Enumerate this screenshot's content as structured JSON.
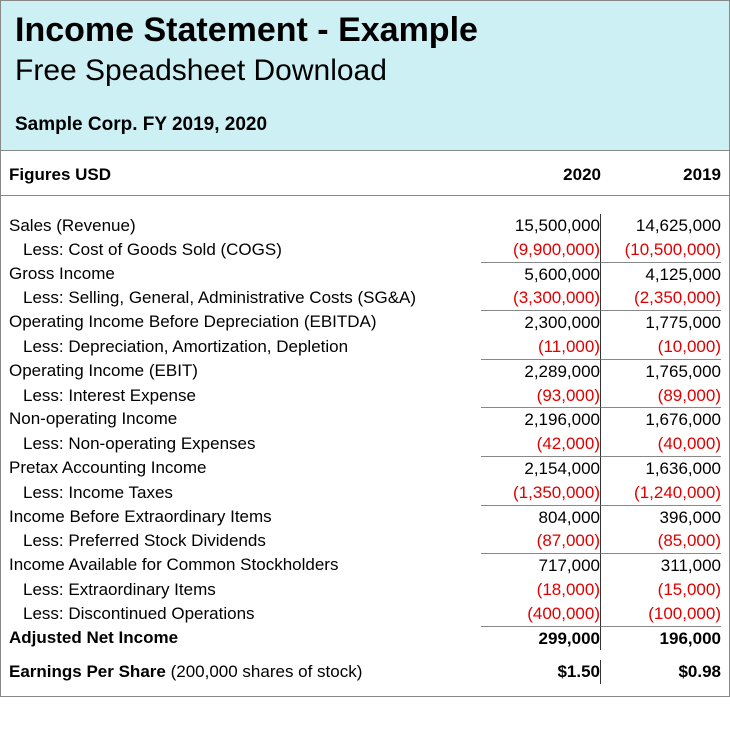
{
  "header": {
    "title": "Income Statement - Example",
    "subtitle": "Free Speadsheet Download",
    "company": "Sample Corp.  FY 2019, 2020",
    "background_color": "#cdf0f4"
  },
  "columns": {
    "figures_label": "Figures USD",
    "year1": "2020",
    "year2": "2019"
  },
  "rows": [
    {
      "label": "Sales (Revenue)",
      "y1": "15,500,000",
      "y2": "14,625,000",
      "indent": false,
      "neg": false,
      "div": false,
      "bold": false
    },
    {
      "label": "Less: Cost of Goods Sold (COGS)",
      "y1": "(9,900,000)",
      "y2": "(10,500,000)",
      "indent": true,
      "neg": true,
      "div": false,
      "bold": false
    },
    {
      "label": "Gross Income",
      "y1": "5,600,000",
      "y2": "4,125,000",
      "indent": false,
      "neg": false,
      "div": true,
      "bold": false
    },
    {
      "label": "Less: Selling, General, Administrative Costs (SG&A)",
      "y1": "(3,300,000)",
      "y2": "(2,350,000)",
      "indent": true,
      "neg": true,
      "div": false,
      "bold": false
    },
    {
      "label": "Operating Income Before Depreciation (EBITDA)",
      "y1": "2,300,000",
      "y2": "1,775,000",
      "indent": false,
      "neg": false,
      "div": true,
      "bold": false
    },
    {
      "label": "Less: Depreciation, Amortization, Depletion",
      "y1": "(11,000)",
      "y2": "(10,000)",
      "indent": true,
      "neg": true,
      "div": false,
      "bold": false
    },
    {
      "label": "Operating Income (EBIT)",
      "y1": "2,289,000",
      "y2": "1,765,000",
      "indent": false,
      "neg": false,
      "div": true,
      "bold": false
    },
    {
      "label": "Less: Interest Expense",
      "y1": "(93,000)",
      "y2": "(89,000)",
      "indent": true,
      "neg": true,
      "div": false,
      "bold": false
    },
    {
      "label": "Non-operating Income",
      "y1": "2,196,000",
      "y2": "1,676,000",
      "indent": false,
      "neg": false,
      "div": true,
      "bold": false
    },
    {
      "label": "Less: Non-operating Expenses",
      "y1": "(42,000)",
      "y2": "(40,000)",
      "indent": true,
      "neg": true,
      "div": false,
      "bold": false
    },
    {
      "label": "Pretax Accounting Income",
      "y1": "2,154,000",
      "y2": "1,636,000",
      "indent": false,
      "neg": false,
      "div": true,
      "bold": false
    },
    {
      "label": "Less: Income Taxes",
      "y1": "(1,350,000)",
      "y2": "(1,240,000)",
      "indent": true,
      "neg": true,
      "div": false,
      "bold": false
    },
    {
      "label": "Income Before Extraordinary Items",
      "y1": "804,000",
      "y2": "396,000",
      "indent": false,
      "neg": false,
      "div": true,
      "bold": false
    },
    {
      "label": "Less: Preferred Stock Dividends",
      "y1": "(87,000)",
      "y2": "(85,000)",
      "indent": true,
      "neg": true,
      "div": false,
      "bold": false
    },
    {
      "label": "Income Available for Common Stockholders",
      "y1": "717,000",
      "y2": "311,000",
      "indent": false,
      "neg": false,
      "div": true,
      "bold": false
    },
    {
      "label": "Less: Extraordinary Items",
      "y1": "(18,000)",
      "y2": "(15,000)",
      "indent": true,
      "neg": true,
      "div": false,
      "bold": false
    },
    {
      "label": "Less: Discontinued Operations",
      "y1": "(400,000)",
      "y2": "(100,000)",
      "indent": true,
      "neg": true,
      "div": false,
      "bold": false
    },
    {
      "label": "Adjusted Net Income",
      "y1": "299,000",
      "y2": "196,000",
      "indent": false,
      "neg": false,
      "div": true,
      "bold": true
    }
  ],
  "eps": {
    "label": "Earnings Per Share",
    "note": "(200,000 shares of stock)",
    "y1": "$1.50",
    "y2": "$0.98"
  },
  "colors": {
    "negative": "#e00000",
    "border": "#888888",
    "text": "#000000"
  }
}
